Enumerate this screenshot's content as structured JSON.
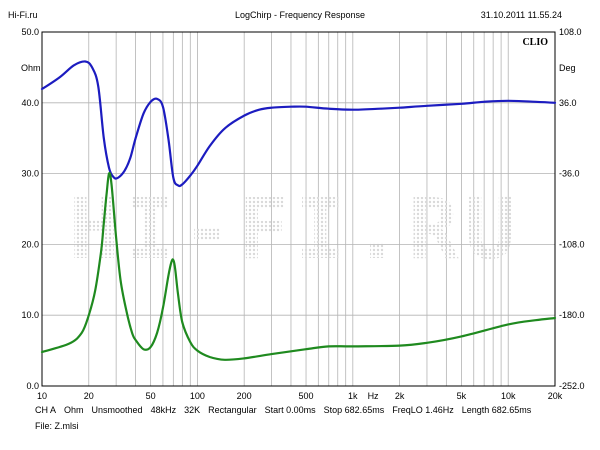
{
  "header": {
    "left": "Hi-Fi.ru",
    "center": "LogChirp - Frequency Response",
    "right": "31.10.2011 11.55.24"
  },
  "logo": "CLIO",
  "watermark": "HI-FI.RU",
  "colors": {
    "magnitude": "#1c1cc0",
    "phase": "#1f8a1f",
    "grid": "#b4b4b4",
    "frame": "#000000",
    "watermark": "#d9d9d9"
  },
  "chart_data": {
    "type": "line",
    "title": "LogChirp - Frequency Response",
    "x_scale": "log",
    "xlim": [
      10,
      20000
    ],
    "x_tick_labels": [
      "10",
      "20",
      "50",
      "100",
      "200",
      "500",
      "1k",
      "Hz",
      "2k",
      "5k",
      "10k",
      "20k"
    ],
    "y_left": {
      "unit": "Ohm",
      "ylim": [
        0,
        50
      ],
      "tick_labels": [
        "50.0",
        "40.0",
        "30.0",
        "20.0",
        "10.0",
        "0.0"
      ]
    },
    "y_right": {
      "unit": "Deg",
      "ylim": [
        -252,
        108
      ],
      "tick_labels": [
        "108.0",
        "36.0",
        "-36.0",
        "-108.0",
        "-180.0",
        "-252.0"
      ]
    },
    "grid": true,
    "series": [
      {
        "axis": "right",
        "color": "#1c1cc0",
        "x": [
          10,
          13,
          16,
          19,
          21,
          23,
          25,
          27,
          29,
          31,
          34,
          37,
          40,
          45,
          50,
          55,
          60,
          65,
          70,
          75,
          80,
          90,
          100,
          120,
          150,
          200,
          250,
          300,
          400,
          500,
          700,
          1000,
          1500,
          2000,
          3000,
          5000,
          7000,
          10000,
          15000,
          20000
        ],
        "y": [
          50,
          62,
          74,
          78,
          72,
          53,
          0,
          -30,
          -40,
          -40,
          -33,
          -20,
          0,
          25,
          37,
          40,
          32,
          0,
          -40,
          -48,
          -47,
          -38,
          -28,
          -8,
          10,
          23,
          29,
          31,
          32,
          32,
          30,
          29,
          30,
          31,
          33,
          35,
          37,
          38,
          37,
          36
        ]
      },
      {
        "axis": "left",
        "color": "#1f8a1f",
        "x": [
          10,
          15,
          18,
          20,
          22,
          24,
          25,
          26,
          27,
          28,
          30,
          32,
          35,
          38,
          40,
          45,
          50,
          55,
          60,
          65,
          68,
          70,
          72,
          75,
          80,
          90,
          100,
          120,
          150,
          200,
          300,
          500,
          700,
          1000,
          2000,
          3000,
          5000,
          10000,
          15000,
          20000
        ],
        "y": [
          4.8,
          6.0,
          7.5,
          10.0,
          13.5,
          19.0,
          23.0,
          27.0,
          30.0,
          28.5,
          21.0,
          15.0,
          10.5,
          7.5,
          6.5,
          5.2,
          5.5,
          7.5,
          11.0,
          15.5,
          17.5,
          17.8,
          16.5,
          13.0,
          9.0,
          6.2,
          5.0,
          4.1,
          3.7,
          3.9,
          4.5,
          5.2,
          5.6,
          5.6,
          5.7,
          6.1,
          7.0,
          8.7,
          9.3,
          9.6
        ]
      }
    ]
  },
  "footer": {
    "params": [
      "CH A",
      "Ohm",
      "Unsmoothed",
      "48kHz",
      "32K",
      "Rectangular",
      "Start 0.00ms",
      "Stop 682.65ms",
      "FreqLO 1.46Hz",
      "Length 682.65ms"
    ],
    "file": "File: Z.mlsi"
  }
}
